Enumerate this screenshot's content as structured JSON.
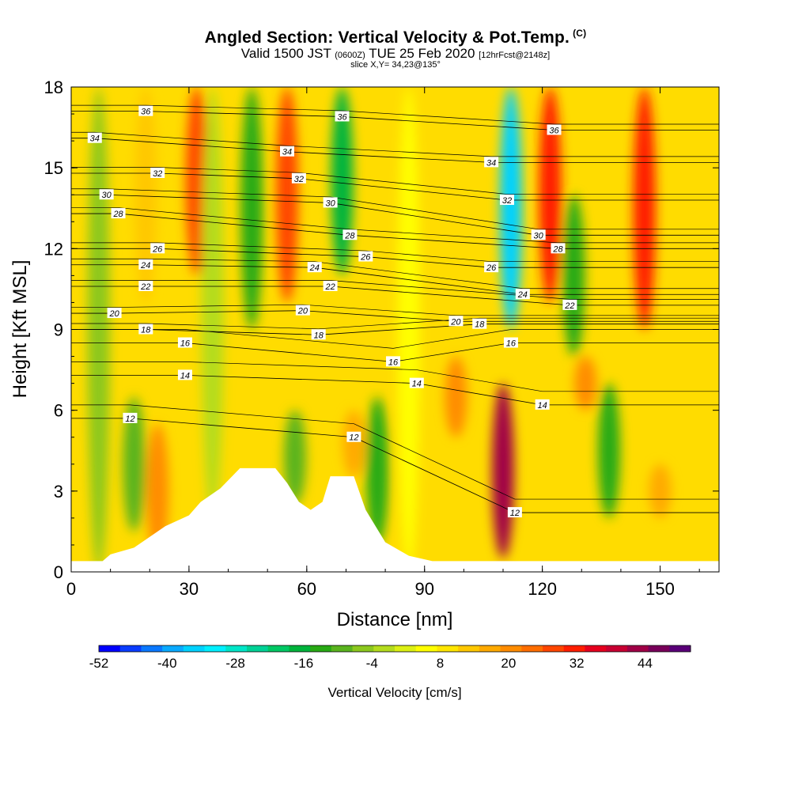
{
  "header": {
    "title": "Angled Section: Vertical Velocity & Pot.Temp.",
    "copyright": "(C)",
    "valid_prefix": "Valid 1500 JST",
    "valid_utc": "(0600Z)",
    "valid_date": "TUE 25 Feb 2020",
    "forecast": "[12hrFcst@2148z]",
    "slice": "slice X,Y= 34,23@135°"
  },
  "chart_data": {
    "type": "heatmap",
    "title": "Angled Section: Vertical Velocity & Pot.Temp.",
    "xlabel": "Distance [nm]",
    "ylabel": "Height [Kft MSL]",
    "xlim": [
      0,
      165
    ],
    "ylim": [
      0,
      18
    ],
    "x_ticks": [
      "0",
      "30",
      "60",
      "90",
      "120",
      "150"
    ],
    "y_ticks": [
      "0",
      "3",
      "6",
      "9",
      "12",
      "15",
      "18"
    ],
    "colorbar": {
      "label": "Vertical Velocity [cm/s]",
      "range": [
        -52,
        52
      ],
      "tick_labels": [
        "-52",
        "-40",
        "-28",
        "-16",
        "-4",
        "8",
        "20",
        "32",
        "44"
      ],
      "colors": [
        "#0000ff",
        "#0a3cff",
        "#0a78ff",
        "#0aaaff",
        "#00d2ff",
        "#00f0ff",
        "#00e6c8",
        "#00d296",
        "#00c864",
        "#00b43c",
        "#28aa14",
        "#5ab41e",
        "#8cc81e",
        "#b4dc1e",
        "#dcf014",
        "#ffff00",
        "#ffe600",
        "#ffc800",
        "#ffaa00",
        "#ff8c00",
        "#ff6e00",
        "#ff4600",
        "#ff1e00",
        "#e6001e",
        "#c80032",
        "#a00046",
        "#78005a",
        "#5a0078"
      ]
    },
    "updraft_columns": [
      {
        "x": 7,
        "y0": 0,
        "y1": 18,
        "w": -6
      },
      {
        "x": 16,
        "y0": 1.5,
        "y1": 6.5,
        "w": -10
      },
      {
        "x": 19,
        "y0": 10,
        "y1": 18,
        "w": 14
      },
      {
        "x": 22,
        "y0": 0.5,
        "y1": 5.5,
        "w": 20
      },
      {
        "x": 32,
        "y0": 11,
        "y1": 18,
        "w": 28
      },
      {
        "x": 36,
        "y0": 2,
        "y1": 18,
        "w": -2
      },
      {
        "x": 46,
        "y0": 9,
        "y1": 18,
        "w": -14
      },
      {
        "x": 55,
        "y0": 10,
        "y1": 18,
        "w": 26
      },
      {
        "x": 57,
        "y0": 2.5,
        "y1": 6,
        "w": -10
      },
      {
        "x": 69,
        "y0": 11,
        "y1": 18,
        "w": -16
      },
      {
        "x": 72,
        "y0": 3.5,
        "y1": 6,
        "w": 16
      },
      {
        "x": 78,
        "y0": 1,
        "y1": 6.5,
        "w": -14
      },
      {
        "x": 86,
        "y0": 0,
        "y1": 18,
        "w": 6
      },
      {
        "x": 98,
        "y0": 5,
        "y1": 8,
        "w": 20
      },
      {
        "x": 110,
        "y0": 0.5,
        "y1": 7,
        "w": 44
      },
      {
        "x": 112,
        "y0": 9,
        "y1": 18,
        "w": -34
      },
      {
        "x": 122,
        "y0": 10,
        "y1": 18,
        "w": 30
      },
      {
        "x": 128,
        "y0": 8,
        "y1": 14,
        "w": -14
      },
      {
        "x": 131,
        "y0": 6,
        "y1": 8,
        "w": 20
      },
      {
        "x": 137,
        "y0": 2,
        "y1": 7,
        "w": -12
      },
      {
        "x": 146,
        "y0": 9,
        "y1": 18,
        "w": 30
      },
      {
        "x": 150,
        "y0": 2,
        "y1": 4,
        "w": 16
      }
    ],
    "terrain": [
      {
        "x": 0,
        "h": 0.4
      },
      {
        "x": 8,
        "h": 0.4
      },
      {
        "x": 10,
        "h": 0.65
      },
      {
        "x": 16,
        "h": 0.9
      },
      {
        "x": 20,
        "h": 1.3
      },
      {
        "x": 24,
        "h": 1.7
      },
      {
        "x": 30,
        "h": 2.1
      },
      {
        "x": 33,
        "h": 2.6
      },
      {
        "x": 38,
        "h": 3.1
      },
      {
        "x": 43,
        "h": 3.85
      },
      {
        "x": 52,
        "h": 3.85
      },
      {
        "x": 55,
        "h": 3.3
      },
      {
        "x": 58,
        "h": 2.6
      },
      {
        "x": 61,
        "h": 2.3
      },
      {
        "x": 64,
        "h": 2.6
      },
      {
        "x": 66,
        "h": 3.55
      },
      {
        "x": 72,
        "h": 3.55
      },
      {
        "x": 75,
        "h": 2.3
      },
      {
        "x": 80,
        "h": 1.1
      },
      {
        "x": 86,
        "h": 0.6
      },
      {
        "x": 92,
        "h": 0.4
      },
      {
        "x": 165,
        "h": 0.4
      }
    ],
    "isentropes": [
      {
        "theta": 12,
        "label_x": 15,
        "label_y": 5.7
      },
      {
        "theta": 12,
        "label_x": 72,
        "label_y": 5.0
      },
      {
        "theta": 12,
        "label_x": 113,
        "label_y": 2.2
      },
      {
        "theta": 14,
        "label_x": 29,
        "label_y": 7.3
      },
      {
        "theta": 14,
        "label_x": 88,
        "label_y": 7.0
      },
      {
        "theta": 14,
        "label_x": 120,
        "label_y": 6.2
      },
      {
        "theta": 16,
        "label_x": 29,
        "label_y": 8.5
      },
      {
        "theta": 16,
        "label_x": 82,
        "label_y": 7.8
      },
      {
        "theta": 16,
        "label_x": 112,
        "label_y": 8.5
      },
      {
        "theta": 18,
        "label_x": 19,
        "label_y": 9.0
      },
      {
        "theta": 18,
        "label_x": 63,
        "label_y": 8.8
      },
      {
        "theta": 18,
        "label_x": 104,
        "label_y": 9.2
      },
      {
        "theta": 20,
        "label_x": 11,
        "label_y": 9.6
      },
      {
        "theta": 20,
        "label_x": 59,
        "label_y": 9.7
      },
      {
        "theta": 20,
        "label_x": 98,
        "label_y": 9.3
      },
      {
        "theta": 22,
        "label_x": 19,
        "label_y": 10.6
      },
      {
        "theta": 22,
        "label_x": 66,
        "label_y": 10.6
      },
      {
        "theta": 22,
        "label_x": 127,
        "label_y": 9.9
      },
      {
        "theta": 24,
        "label_x": 19,
        "label_y": 11.4
      },
      {
        "theta": 24,
        "label_x": 62,
        "label_y": 11.3
      },
      {
        "theta": 24,
        "label_x": 115,
        "label_y": 10.3
      },
      {
        "theta": 26,
        "label_x": 22,
        "label_y": 12.0
      },
      {
        "theta": 26,
        "label_x": 75,
        "label_y": 11.7
      },
      {
        "theta": 26,
        "label_x": 107,
        "label_y": 11.3
      },
      {
        "theta": 28,
        "label_x": 12,
        "label_y": 13.3
      },
      {
        "theta": 28,
        "label_x": 71,
        "label_y": 12.5
      },
      {
        "theta": 28,
        "label_x": 124,
        "label_y": 12.0
      },
      {
        "theta": 30,
        "label_x": 9,
        "label_y": 14.0
      },
      {
        "theta": 30,
        "label_x": 66,
        "label_y": 13.7
      },
      {
        "theta": 30,
        "label_x": 119,
        "label_y": 12.5
      },
      {
        "theta": 32,
        "label_x": 22,
        "label_y": 14.8
      },
      {
        "theta": 32,
        "label_x": 58,
        "label_y": 14.6
      },
      {
        "theta": 32,
        "label_x": 111,
        "label_y": 13.8
      },
      {
        "theta": 34,
        "label_x": 6,
        "label_y": 16.1
      },
      {
        "theta": 34,
        "label_x": 55,
        "label_y": 15.6
      },
      {
        "theta": 34,
        "label_x": 107,
        "label_y": 15.2
      },
      {
        "theta": 36,
        "label_x": 19,
        "label_y": 17.1
      },
      {
        "theta": 36,
        "label_x": 69,
        "label_y": 16.9
      },
      {
        "theta": 36,
        "label_x": 123,
        "label_y": 16.4
      }
    ]
  }
}
